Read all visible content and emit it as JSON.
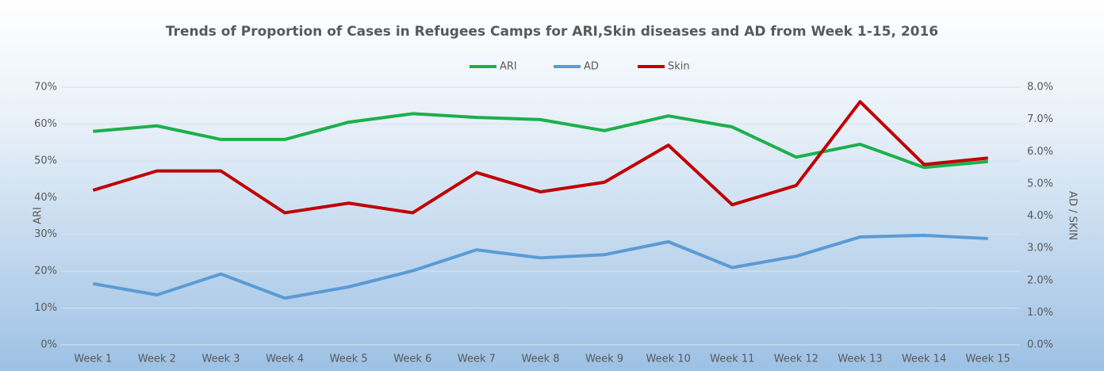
{
  "chart_data": {
    "type": "line",
    "title": "Trends of Proportion of Cases in Refugees Camps for ARI,Skin diseases and AD from Week 1-15, 2016",
    "ylabel": "ARI",
    "y2label": "AD / SKIN",
    "categories": [
      "Week 1",
      "Week 2",
      "Week 3",
      "Week 4",
      "Week 5",
      "Week 6",
      "Week 7",
      "Week 8",
      "Week 9",
      "Week 10",
      "Week 11",
      "Week 12",
      "Week 13",
      "Week 14",
      "Week 15"
    ],
    "series": [
      {
        "name": "ARI",
        "color": "#1db04b",
        "values": [
          58,
          59.5,
          55.8,
          55.8,
          60.5,
          62.8,
          61.8,
          61.2,
          58.2,
          62.2,
          59.2,
          51,
          54.5,
          48.2,
          49.8
        ]
      },
      {
        "name": "AD",
        "color": "#5b9bd5",
        "axis": "y2",
        "values": [
          1.9,
          1.55,
          2.2,
          1.45,
          1.8,
          2.3,
          2.95,
          2.7,
          2.8,
          3.2,
          2.4,
          2.75,
          3.35,
          3.4,
          3.3
        ]
      },
      {
        "name": "Skin",
        "color": "#c00000",
        "axis": "y2",
        "values": [
          4.8,
          5.4,
          5.4,
          4.1,
          4.4,
          4.1,
          5.35,
          4.75,
          5.05,
          6.2,
          4.35,
          4.95,
          7.55,
          5.6,
          5.8
        ]
      }
    ],
    "ylim": [
      0,
      70
    ],
    "yticks": [
      {
        "value": 0,
        "label": "0%"
      },
      {
        "value": 10,
        "label": "10%"
      },
      {
        "value": 20,
        "label": "20%"
      },
      {
        "value": 30,
        "label": "30%"
      },
      {
        "value": 40,
        "label": "40%"
      },
      {
        "value": 50,
        "label": "50%"
      },
      {
        "value": 60,
        "label": "60%"
      },
      {
        "value": 70,
        "label": "70%"
      }
    ],
    "y2lim": [
      0,
      8
    ],
    "y2ticks": [
      {
        "value": 0,
        "label": "0.0%"
      },
      {
        "value": 1,
        "label": "1.0%"
      },
      {
        "value": 2,
        "label": "2.0%"
      },
      {
        "value": 3,
        "label": "3.0%"
      },
      {
        "value": 4,
        "label": "4.0%"
      },
      {
        "value": 5,
        "label": "5.0%"
      },
      {
        "value": 6,
        "label": "6.0%"
      },
      {
        "value": 7,
        "label": "7.0%"
      },
      {
        "value": 8,
        "label": "8.0%"
      }
    ],
    "grid": true,
    "legend": "top"
  }
}
